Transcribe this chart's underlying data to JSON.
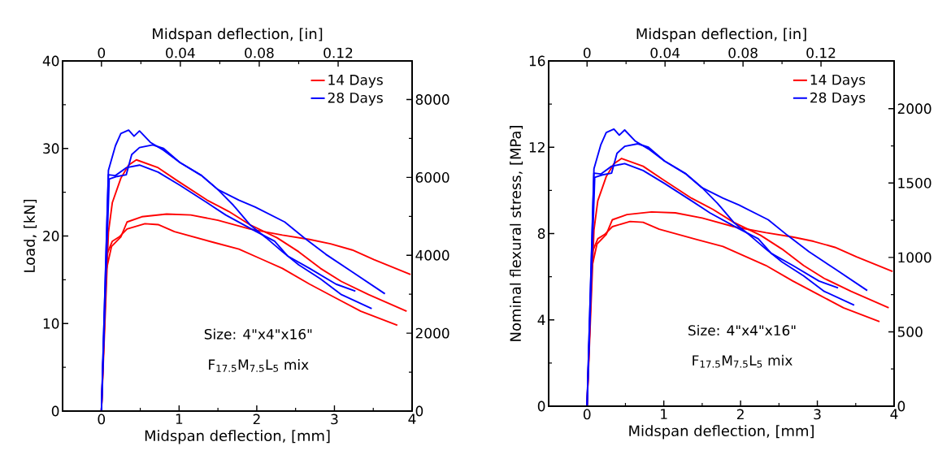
{
  "chart_data": [
    {
      "type": "line",
      "xlabel": "Midspan deflection, [mm]",
      "x2label": "Midspan deflection, [in]",
      "ylabel": "Load, [kN]",
      "xlim": [
        -0.5,
        4
      ],
      "xticks": [
        0,
        1,
        2,
        3,
        4
      ],
      "ylim": [
        0,
        40
      ],
      "yticks": [
        0,
        10,
        20,
        30,
        40
      ],
      "x2lim": [
        -0.0197,
        0.1575
      ],
      "x2ticks": [
        0,
        0.04,
        0.08,
        0.12
      ],
      "y2lim": [
        0,
        8992
      ],
      "y2ticks": [
        0,
        2000,
        4000,
        6000,
        8000
      ],
      "legend": "top right",
      "annotations": [
        "Size: 4\"x4\"x16\"",
        "F$_{17.5}$M$_{7.5}$L$_{5}$ mix"
      ],
      "series": [
        {
          "name": "14 Days",
          "color": "#ff0000",
          "x": [
            0,
            0.04,
            0.09,
            0.14,
            0.25,
            0.35,
            0.45,
            0.73,
            0.98,
            1.36,
            1.64,
            1.91,
            2.26,
            2.54,
            2.82,
            3.09,
            3.44,
            3.93
          ],
          "values": [
            0,
            null,
            20.4,
            23.8,
            26.6,
            28.1,
            28.7,
            27.8,
            26.3,
            24.1,
            22.8,
            21.3,
            19.8,
            18.2,
            16.3,
            14.8,
            13.3,
            11.4
          ]
        },
        {
          "color": "#ff0000",
          "x": [
            0,
            0.06,
            0.13,
            0.25,
            0.33,
            0.52,
            0.84,
            1.15,
            1.5,
            1.91,
            2.33,
            2.68,
            2.95,
            3.23,
            3.51,
            3.98
          ],
          "values": [
            0,
            16.0,
            18.8,
            19.9,
            21.6,
            22.2,
            22.5,
            22.4,
            21.8,
            20.8,
            20.1,
            19.6,
            19.1,
            18.4,
            17.3,
            15.6
          ]
        },
        {
          "color": "#ff0000",
          "x": [
            0,
            0.07,
            0.14,
            0.23,
            0.33,
            0.56,
            0.73,
            0.94,
            1.43,
            1.77,
            2.05,
            2.33,
            2.68,
            3.02,
            3.34,
            3.81
          ],
          "values": [
            0,
            17.9,
            19.4,
            19.9,
            20.8,
            21.4,
            21.3,
            20.5,
            19.3,
            18.5,
            17.4,
            16.3,
            14.5,
            12.9,
            11.4,
            9.8
          ]
        },
        {
          "name": "28 Days",
          "color": "#0000ff",
          "x": [
            0,
            0.09,
            0.18,
            0.25,
            0.35,
            0.42,
            0.49,
            0.63,
            0.8,
            1.01,
            1.29,
            1.5,
            1.77,
            1.98,
            2.36,
            2.61,
            2.89,
            3.23,
            3.65
          ],
          "values": [
            0,
            27.5,
            30.3,
            31.7,
            32.1,
            31.4,
            32.0,
            30.7,
            29.8,
            28.4,
            26.9,
            25.3,
            24.1,
            23.3,
            21.6,
            19.8,
            17.9,
            15.9,
            13.4
          ]
        },
        {
          "color": "#0000ff",
          "x": [
            0,
            0.1,
            0.2,
            0.32,
            0.39,
            0.49,
            0.66,
            0.8,
            1.01,
            1.29,
            1.5,
            1.7,
            1.91,
            2.12,
            2.33,
            2.54,
            2.82,
            3.09,
            3.48
          ],
          "values": [
            0,
            26.5,
            26.8,
            27.0,
            29.3,
            30.1,
            30.4,
            30.0,
            28.4,
            26.9,
            25.3,
            23.5,
            21.3,
            19.8,
            18.2,
            16.7,
            15.1,
            13.3,
            11.7
          ]
        },
        {
          "color": "#0000ff",
          "x": [
            0,
            0.09,
            0.18,
            0.32,
            0.49,
            0.73,
            1.01,
            1.36,
            1.6,
            1.95,
            2.23,
            2.4,
            2.68,
            3.02,
            3.27
          ],
          "values": [
            0,
            27.0,
            26.9,
            27.8,
            28.1,
            27.3,
            25.8,
            23.8,
            22.4,
            20.7,
            19.4,
            17.7,
            16.3,
            14.5,
            13.7
          ]
        }
      ]
    },
    {
      "type": "line",
      "xlabel": "Midspan deflection, [mm]",
      "x2label": "Midspan deflection, [in]",
      "ylabel": "Nominal flexural stress, [MPa]",
      "xlim": [
        -0.5,
        4
      ],
      "xticks": [
        0,
        1,
        2,
        3,
        4
      ],
      "ylim": [
        0,
        16
      ],
      "yticks": [
        0,
        4,
        8,
        12,
        16
      ],
      "x2lim": [
        -0.0197,
        0.1575
      ],
      "x2ticks": [
        0,
        0.04,
        0.08,
        0.12
      ],
      "y2lim": [
        0,
        2321
      ],
      "y2ticks": [
        0,
        500,
        1000,
        1500,
        2000
      ],
      "legend": "top right",
      "annotations": [
        "Size: 4\"x4\"x16\"",
        "F$_{17.5}$M$_{7.5}$L$_{5}$ mix"
      ],
      "series": [
        {
          "name": "14 Days",
          "color": "#ff0000",
          "x": [
            0,
            0.04,
            0.09,
            0.14,
            0.25,
            0.35,
            0.45,
            0.73,
            0.98,
            1.36,
            1.64,
            1.91,
            2.26,
            2.54,
            2.82,
            3.09,
            3.44,
            3.93
          ],
          "values": [
            0,
            null,
            8.16,
            9.52,
            10.64,
            11.24,
            11.48,
            11.12,
            10.52,
            9.64,
            9.12,
            8.52,
            7.92,
            7.28,
            6.52,
            5.92,
            5.32,
            4.56
          ]
        },
        {
          "color": "#ff0000",
          "x": [
            0,
            0.06,
            0.13,
            0.25,
            0.33,
            0.52,
            0.84,
            1.15,
            1.5,
            1.91,
            2.33,
            2.68,
            2.95,
            3.23,
            3.51,
            3.98
          ],
          "values": [
            0,
            6.4,
            7.52,
            7.96,
            8.64,
            8.88,
            9.0,
            8.96,
            8.72,
            8.32,
            8.04,
            7.84,
            7.64,
            7.36,
            6.92,
            6.24
          ]
        },
        {
          "color": "#ff0000",
          "x": [
            0,
            0.07,
            0.14,
            0.23,
            0.33,
            0.56,
            0.73,
            0.94,
            1.43,
            1.77,
            2.05,
            2.33,
            2.68,
            3.02,
            3.34,
            3.81
          ],
          "values": [
            0,
            7.16,
            7.76,
            7.96,
            8.32,
            8.56,
            8.52,
            8.2,
            7.72,
            7.4,
            6.96,
            6.52,
            5.8,
            5.16,
            4.56,
            3.92
          ]
        },
        {
          "name": "28 Days",
          "color": "#0000ff",
          "x": [
            0,
            0.09,
            0.18,
            0.25,
            0.35,
            0.42,
            0.49,
            0.63,
            0.8,
            1.01,
            1.29,
            1.5,
            1.77,
            1.98,
            2.36,
            2.61,
            2.89,
            3.23,
            3.65
          ],
          "values": [
            0,
            11.0,
            12.12,
            12.68,
            12.84,
            12.56,
            12.8,
            12.28,
            11.92,
            11.36,
            10.76,
            10.12,
            9.64,
            9.32,
            8.64,
            7.92,
            7.16,
            6.36,
            5.36
          ]
        },
        {
          "color": "#0000ff",
          "x": [
            0,
            0.1,
            0.2,
            0.32,
            0.39,
            0.49,
            0.66,
            0.8,
            1.01,
            1.29,
            1.5,
            1.7,
            1.91,
            2.12,
            2.33,
            2.54,
            2.82,
            3.09,
            3.48
          ],
          "values": [
            0,
            10.6,
            10.72,
            10.8,
            11.72,
            12.04,
            12.16,
            12.0,
            11.36,
            10.76,
            10.12,
            9.4,
            8.52,
            7.92,
            7.28,
            6.68,
            6.04,
            5.32,
            4.68
          ]
        },
        {
          "color": "#0000ff",
          "x": [
            0,
            0.09,
            0.18,
            0.32,
            0.49,
            0.73,
            1.01,
            1.36,
            1.6,
            1.95,
            2.23,
            2.4,
            2.68,
            3.02,
            3.27
          ],
          "values": [
            0,
            10.8,
            10.76,
            11.12,
            11.24,
            10.92,
            10.32,
            9.52,
            8.96,
            8.28,
            7.76,
            7.08,
            6.52,
            5.8,
            5.48
          ]
        }
      ]
    }
  ]
}
